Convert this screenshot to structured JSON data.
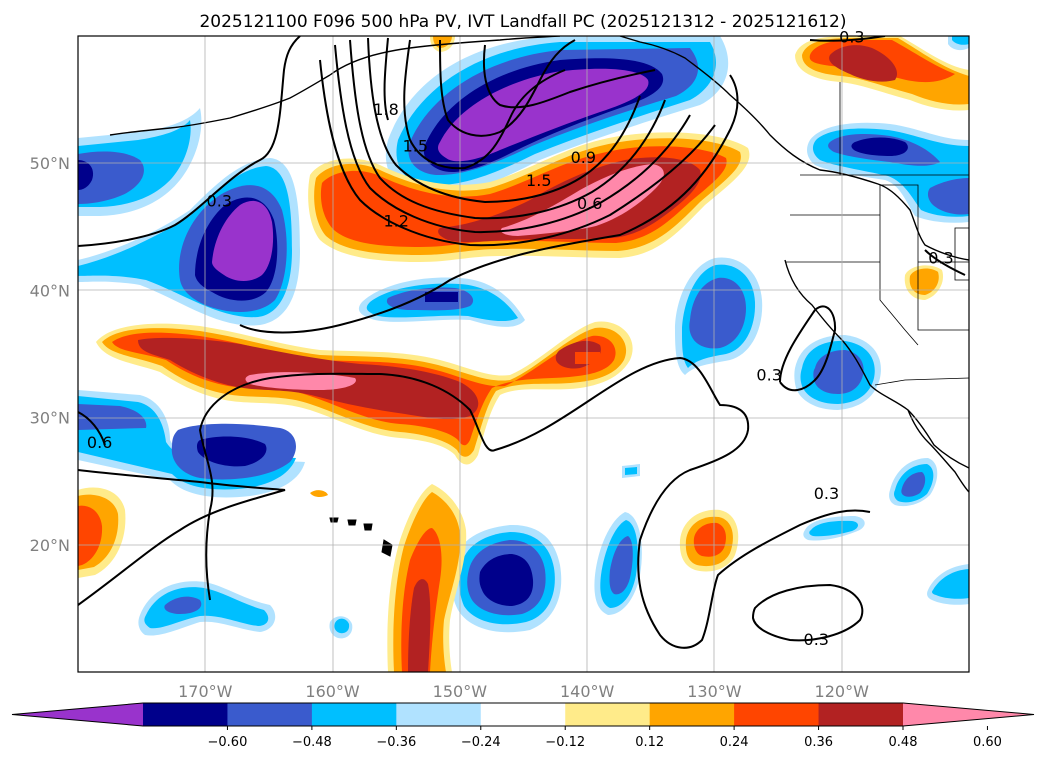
{
  "title": "2025121100 F096 500 hPa PV, IVT Landfall PC (2025121312 - 2025121612)",
  "chart_data": {
    "type": "map",
    "lon_range": [
      -180,
      -110
    ],
    "lat_range": [
      10,
      60
    ],
    "lon_ticks": [
      {
        "value": -170,
        "label": "170°W"
      },
      {
        "value": -160,
        "label": "160°W"
      },
      {
        "value": -150,
        "label": "150°W"
      },
      {
        "value": -140,
        "label": "140°W"
      },
      {
        "value": -130,
        "label": "130°W"
      },
      {
        "value": -120,
        "label": "120°W"
      }
    ],
    "lat_ticks": [
      {
        "value": 50,
        "label": "50°N"
      },
      {
        "value": 40,
        "label": "40°N"
      },
      {
        "value": 30,
        "label": "30°N"
      },
      {
        "value": 20,
        "label": "20°N"
      }
    ],
    "grid": true,
    "colorbar": {
      "orientation": "horizontal",
      "extend": "both",
      "colors": [
        "#9933cc",
        "#00008b",
        "#3a5bcd",
        "#00bfff",
        "#b0e2ff",
        "#ffffff",
        "#ffeb8a",
        "#ffa500",
        "#ff4500",
        "#b22222",
        "#ff88aa"
      ],
      "ticks": [
        {
          "value": -0.6,
          "label": "−0.60"
        },
        {
          "value": -0.48,
          "label": "−0.48"
        },
        {
          "value": -0.36,
          "label": "−0.36"
        },
        {
          "value": -0.24,
          "label": "−0.24"
        },
        {
          "value": -0.12,
          "label": "−0.12"
        },
        {
          "value": 0.12,
          "label": "0.12"
        },
        {
          "value": 0.24,
          "label": "0.24"
        },
        {
          "value": 0.36,
          "label": "0.36"
        },
        {
          "value": 0.48,
          "label": "0.48"
        },
        {
          "value": 0.6,
          "label": "0.60"
        }
      ]
    },
    "contour_labels": [
      {
        "text": "0.3",
        "lon": -168.9,
        "lat": 47.0
      },
      {
        "text": "1.8",
        "lon": -155.8,
        "lat": 54.2
      },
      {
        "text": "1.5",
        "lon": -153.5,
        "lat": 51.3
      },
      {
        "text": "1.2",
        "lon": -155.0,
        "lat": 45.4
      },
      {
        "text": "1.5",
        "lon": -143.8,
        "lat": 48.6
      },
      {
        "text": "0.9",
        "lon": -140.3,
        "lat": 50.4
      },
      {
        "text": "0.6",
        "lon": -139.8,
        "lat": 46.8
      },
      {
        "text": "0.3",
        "lon": -125.7,
        "lat": 33.3
      },
      {
        "text": "0.3",
        "lon": -112.2,
        "lat": 42.5
      },
      {
        "text": "0.6",
        "lon": -178.3,
        "lat": 28.0
      },
      {
        "text": "0.3",
        "lon": -121.2,
        "lat": 24.0
      },
      {
        "text": "0.3",
        "lon": -122.0,
        "lat": 12.5
      },
      {
        "text": "0.3",
        "lon": -119.2,
        "lat": 59.9
      }
    ]
  }
}
